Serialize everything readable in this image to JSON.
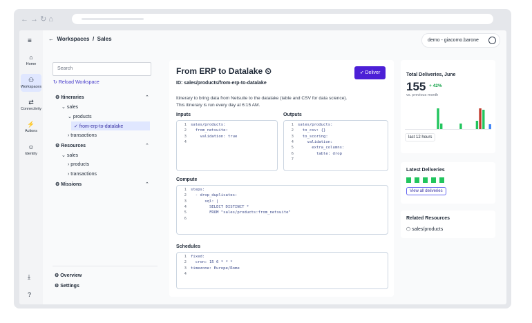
{
  "nav": {
    "items": [
      "Home",
      "Workspaces",
      "Connectivity",
      "Actions",
      "Identity"
    ]
  },
  "breadcrumb": {
    "workspace": "Workspaces",
    "separator": "/",
    "current": "Sales"
  },
  "user": "demo - giacomo.barone",
  "sidebar": {
    "search_placeholder": "Search",
    "reload": "Reload Workspace",
    "tree": [
      {
        "label": "Itineraries",
        "children": [
          {
            "label": "sales",
            "children": [
              {
                "label": "products",
                "children": [
                  {
                    "label": "from-erp-to-datalake",
                    "selected": true
                  }
                ]
              },
              {
                "label": "transactions"
              }
            ]
          }
        ]
      },
      {
        "label": "Resources",
        "children": [
          {
            "label": "sales",
            "children": [
              {
                "label": "products"
              },
              {
                "label": "transactions"
              }
            ]
          }
        ]
      },
      {
        "label": "Missions"
      }
    ],
    "footer": [
      "Overview",
      "Settings"
    ]
  },
  "itinerary": {
    "title": "From ERP to Datalake",
    "id_label": "ID:",
    "id": "sales/products/from-erp-to-datalake",
    "button": "Deliver",
    "description": [
      "Itinerary to bring data from Netsuite to the datalake (table and CSV for data science).",
      "This itinerary is run every day at 6:15 AM."
    ],
    "sections": [
      {
        "title": "Inputs",
        "lines": [
          {
            "number": 1,
            "code": "sales/products:"
          },
          {
            "number": 2,
            "code": "  from_netsuite:"
          },
          {
            "number": 3,
            "code": "    validation: true"
          },
          {
            "number": 4
          }
        ]
      },
      {
        "title": "Outputs",
        "lines": [
          {
            "number": 1,
            "code": "sales/products:"
          },
          {
            "number": 2,
            "code": "  to_csv: {}"
          },
          {
            "number": 3,
            "code": "  to_scoring:"
          },
          {
            "number": 4,
            "code": "    validation:"
          },
          {
            "number": 5,
            "code": "      extra_columns:"
          },
          {
            "number": 6,
            "code": "        table: drop"
          },
          {
            "number": 7
          }
        ]
      },
      {
        "title": "Compute",
        "lines": [
          {
            "number": 1,
            "code": "steps:"
          },
          {
            "number": 2,
            "code": "  - drop_duplicates:"
          },
          {
            "number": 3,
            "code": "      sql: |"
          },
          {
            "number": 4,
            "code": "        SELECT DISTINCT *"
          },
          {
            "number": 5,
            "code": "        FROM \"sales/products:from_netsuite\""
          },
          {
            "number": 6
          }
        ]
      },
      {
        "title": "Schedules",
        "lines": [
          {
            "number": 1,
            "code": "fixed:"
          },
          {
            "number": 2,
            "code": "  cron: 15 6 * * *"
          },
          {
            "number": 3,
            "code": "timezone: Europe/Rome"
          },
          {
            "number": 4
          }
        ]
      }
    ]
  },
  "stats": {
    "title": "Total Deliveries, June",
    "value": 155,
    "change": "+ 42%",
    "comparison": "vs. previous month",
    "range": "last 12 hours",
    "bars": {
      "values": [
        0,
        0,
        0,
        0,
        0,
        0,
        0,
        0,
        0,
        30,
        8,
        0,
        0,
        0,
        0,
        0,
        8,
        0,
        0,
        0,
        0,
        12,
        30,
        28,
        0,
        7
      ],
      "colors": [
        "#22c55e",
        "#22c55e",
        "#22c55e",
        "#22c55e",
        "#22c55e",
        "#22c55e",
        "#22c55e",
        "#22c55e",
        "#22c55e",
        "#22c55e",
        "#22c55e",
        "#22c55e",
        "#22c55e",
        "#22c55e",
        "#22c55e",
        "#22c55e",
        "#22c55e",
        "#22c55e",
        "#22c55e",
        "#22c55e",
        "#22c55e",
        "#22c55e",
        "#c0392b",
        "#22c55e",
        "#22c55e",
        "#3b82f6"
      ]
    }
  },
  "latest": {
    "title": "Latest Deliveries",
    "button": "View all deliveries"
  },
  "related": {
    "title": "Related Resources",
    "items": [
      "sales/products"
    ]
  }
}
